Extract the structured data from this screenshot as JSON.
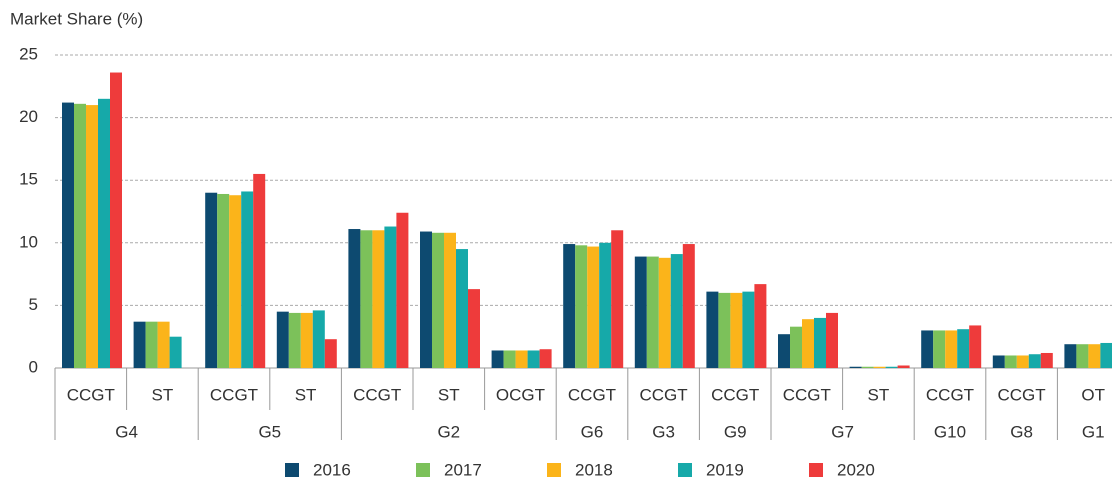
{
  "chart_data": {
    "type": "bar",
    "y_label": "Market Share (%)",
    "groups": [
      {
        "label": "G4",
        "categories": [
          "CCGT",
          "ST"
        ]
      },
      {
        "label": "G5",
        "categories": [
          "CCGT",
          "ST"
        ]
      },
      {
        "label": "G2",
        "categories": [
          "CCGT",
          "ST",
          "OCGT"
        ]
      },
      {
        "label": "G6",
        "categories": [
          "CCGT"
        ]
      },
      {
        "label": "G3",
        "categories": [
          "CCGT"
        ]
      },
      {
        "label": "G9",
        "categories": [
          "CCGT"
        ]
      },
      {
        "label": "G7",
        "categories": [
          "CCGT",
          "ST"
        ]
      },
      {
        "label": "G10",
        "categories": [
          "CCGT"
        ]
      },
      {
        "label": "G8",
        "categories": [
          "CCGT"
        ]
      },
      {
        "label": "G1",
        "categories": [
          "OT"
        ]
      }
    ],
    "series": [
      {
        "name": "2016",
        "color": "#0d4a70",
        "values": [
          21.2,
          3.7,
          14.0,
          4.5,
          11.1,
          10.9,
          1.4,
          9.9,
          8.9,
          6.1,
          2.7,
          0.1,
          3.0,
          1.0,
          1.9
        ]
      },
      {
        "name": "2017",
        "color": "#7cc15a",
        "values": [
          21.1,
          3.7,
          13.9,
          4.4,
          11.0,
          10.8,
          1.4,
          9.8,
          8.9,
          6.0,
          3.3,
          0.1,
          3.0,
          1.0,
          1.9
        ]
      },
      {
        "name": "2018",
        "color": "#fbb41a",
        "values": [
          21.0,
          3.7,
          13.8,
          4.4,
          11.0,
          10.8,
          1.4,
          9.7,
          8.8,
          6.0,
          3.9,
          0.1,
          3.0,
          1.0,
          1.9
        ]
      },
      {
        "name": "2019",
        "color": "#16a9a9",
        "values": [
          21.5,
          2.5,
          14.1,
          4.6,
          11.3,
          9.5,
          1.4,
          10.0,
          9.1,
          6.1,
          4.0,
          0.1,
          3.1,
          1.1,
          2.0
        ]
      },
      {
        "name": "2020",
        "color": "#ee3b3b",
        "values": [
          23.6,
          null,
          15.5,
          2.3,
          12.4,
          6.3,
          1.5,
          11.0,
          9.9,
          6.7,
          4.4,
          0.2,
          3.4,
          1.2,
          2.1
        ]
      }
    ],
    "ylim": [
      0,
      25
    ],
    "yticks": [
      0,
      5,
      10,
      15,
      20,
      25
    ],
    "grid": true,
    "legend": "bottom"
  }
}
